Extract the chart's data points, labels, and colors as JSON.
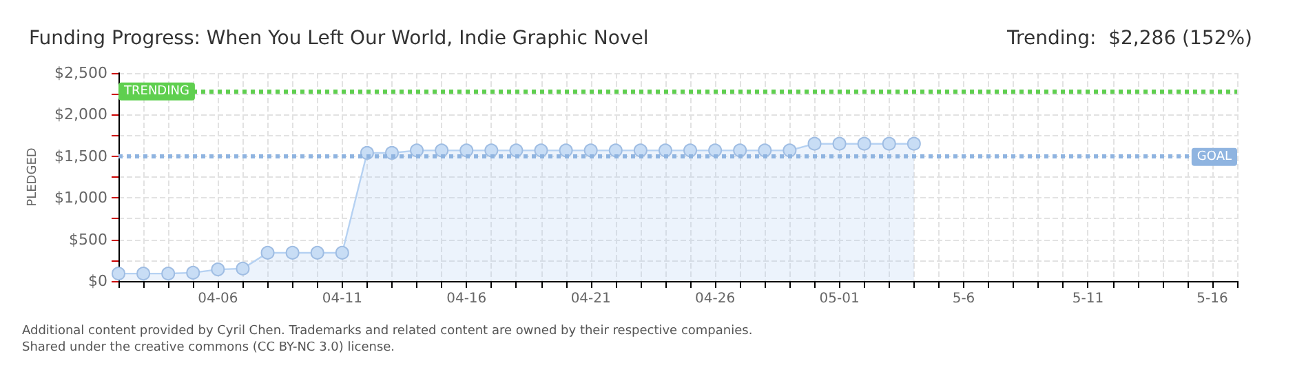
{
  "chart_data": {
    "type": "area",
    "title": "Funding Progress: When You Left Our World, Indie Graphic Novel",
    "subtitle": "Trending:  $2,286 (152%)",
    "ylabel": "PLEDGED",
    "annotations": [
      "Additional content provided by Cyril Chen. Trademarks and related content are owned by their respective companies.",
      "Shared under the creative commons (CC BY-NC 3.0) license."
    ],
    "x": [
      "--04-02",
      "--04-03",
      "--04-04",
      "--04-05",
      "--04-06",
      "--04-07",
      "--04-08",
      "--04-09",
      "--04-10",
      "--04-11",
      "--04-12",
      "--04-13",
      "--04-14",
      "--04-15",
      "--04-16",
      "--04-17",
      "--04-18",
      "--04-19",
      "--04-20",
      "--04-21",
      "--04-22",
      "--04-23",
      "--04-24",
      "--04-25",
      "--04-26",
      "--04-27",
      "--04-28",
      "--04-29",
      "--04-30",
      "--05-01",
      "--05-02",
      "--05-03",
      "--05-04"
    ],
    "series": [
      {
        "color": "#b5d1f2",
        "values": [
          90,
          90,
          90,
          100,
          140,
          150,
          340,
          340,
          340,
          340,
          1540,
          1540,
          1570,
          1570,
          1570,
          1570,
          1570,
          1570,
          1570,
          1570,
          1570,
          1570,
          1570,
          1570,
          1570,
          1570,
          1570,
          1570,
          1650,
          1650,
          1650,
          1650,
          1650
        ]
      }
    ],
    "xlim": [
      "--04-02",
      "--05-17"
    ],
    "xticks": [
      {
        "value": "--04-02",
        "label": null
      },
      {
        "value": "--04-03",
        "label": null
      },
      {
        "value": "--04-04",
        "label": null
      },
      {
        "value": "--04-05",
        "label": null
      },
      {
        "value": "--04-06",
        "label": "04-06"
      },
      {
        "value": "--04-07",
        "label": null
      },
      {
        "value": "--04-08",
        "label": null
      },
      {
        "value": "--04-09",
        "label": null
      },
      {
        "value": "--04-10",
        "label": null
      },
      {
        "value": "--04-11",
        "label": "04-11"
      },
      {
        "value": "--04-12",
        "label": null
      },
      {
        "value": "--04-13",
        "label": null
      },
      {
        "value": "--04-14",
        "label": null
      },
      {
        "value": "--04-15",
        "label": null
      },
      {
        "value": "--04-16",
        "label": "04-16"
      },
      {
        "value": "--04-17",
        "label": null
      },
      {
        "value": "--04-18",
        "label": null
      },
      {
        "value": "--04-19",
        "label": null
      },
      {
        "value": "--04-20",
        "label": null
      },
      {
        "value": "--04-21",
        "label": "04-21"
      },
      {
        "value": "--04-22",
        "label": null
      },
      {
        "value": "--04-23",
        "label": null
      },
      {
        "value": "--04-24",
        "label": null
      },
      {
        "value": "--04-25",
        "label": null
      },
      {
        "value": "--04-26",
        "label": "04-26"
      },
      {
        "value": "--04-27",
        "label": null
      },
      {
        "value": "--04-28",
        "label": null
      },
      {
        "value": "--04-29",
        "label": null
      },
      {
        "value": "--04-30",
        "label": null
      },
      {
        "value": "--05-01",
        "label": "05-01"
      },
      {
        "value": "--05-02",
        "label": null
      },
      {
        "value": "--05-03",
        "label": null
      },
      {
        "value": "--05-04",
        "label": null
      },
      {
        "value": "--05-05",
        "label": null
      },
      {
        "value": "--05-06",
        "label": "5-6"
      },
      {
        "value": "--05-07",
        "label": null
      },
      {
        "value": "--05-08",
        "label": null
      },
      {
        "value": "--05-09",
        "label": null
      },
      {
        "value": "--05-10",
        "label": null
      },
      {
        "value": "--05-11",
        "label": "5-11"
      },
      {
        "value": "--05-12",
        "label": null
      },
      {
        "value": "--05-13",
        "label": null
      },
      {
        "value": "--05-14",
        "label": null
      },
      {
        "value": "--05-15",
        "label": null
      },
      {
        "value": "--05-16",
        "label": "5-16"
      },
      {
        "value": "--05-17",
        "label": null
      }
    ],
    "ylim": [
      0,
      2500
    ],
    "yticks": [
      {
        "value": 0,
        "label": "$0"
      },
      {
        "value": 250,
        "label": null
      },
      {
        "value": 500,
        "label": "$500"
      },
      {
        "value": 750,
        "label": null
      },
      {
        "value": 1000,
        "label": "$1,000"
      },
      {
        "value": 1250,
        "label": null
      },
      {
        "value": 1500,
        "label": "$1,500"
      },
      {
        "value": 1750,
        "label": null
      },
      {
        "value": 2000,
        "label": "$2,000"
      },
      {
        "value": 2250,
        "label": null
      },
      {
        "value": 2500,
        "label": "$2,500"
      }
    ],
    "ref_lines": [
      {
        "axis": "y",
        "value": 2286,
        "label": "TRENDING",
        "color": "#5fcf4f",
        "line_style": "dotted"
      },
      {
        "axis": "y",
        "value": 1500,
        "label": "GOAL",
        "color": "#8fb4e0",
        "line_style": "dotted"
      }
    ],
    "grid": true,
    "marker": "circle",
    "line_style": "solid"
  }
}
